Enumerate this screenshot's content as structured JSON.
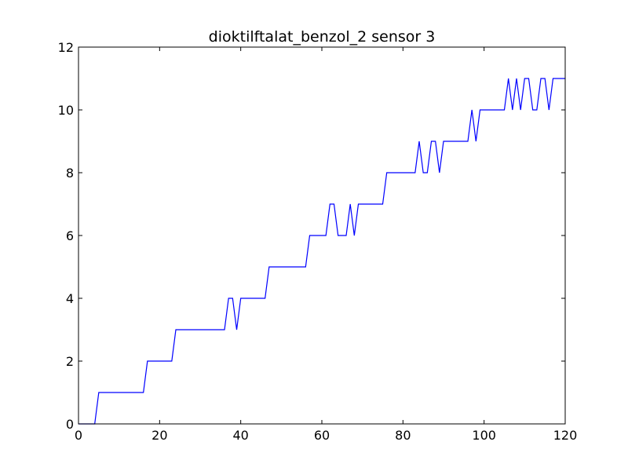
{
  "chart_data": {
    "type": "line",
    "title": "dioktilftalat_benzol_2 sensor 3",
    "xlabel": "",
    "ylabel": "",
    "xlim": [
      0,
      120
    ],
    "ylim": [
      0,
      12
    ],
    "xticks": [
      0,
      20,
      40,
      60,
      80,
      100,
      120
    ],
    "yticks": [
      0,
      2,
      4,
      6,
      8,
      10,
      12
    ],
    "grid": false,
    "series": [
      {
        "color": "#0000ff",
        "x": [
          0,
          1,
          2,
          3,
          4,
          5,
          6,
          7,
          8,
          9,
          10,
          11,
          12,
          13,
          14,
          15,
          16,
          17,
          18,
          19,
          20,
          21,
          22,
          23,
          24,
          25,
          26,
          27,
          28,
          29,
          30,
          31,
          32,
          33,
          34,
          35,
          36,
          37,
          38,
          39,
          40,
          41,
          42,
          43,
          44,
          45,
          46,
          47,
          48,
          49,
          50,
          51,
          52,
          53,
          54,
          55,
          56,
          57,
          58,
          59,
          60,
          61,
          62,
          63,
          64,
          65,
          66,
          67,
          68,
          69,
          70,
          71,
          72,
          73,
          74,
          75,
          76,
          77,
          78,
          79,
          80,
          81,
          82,
          83,
          84,
          85,
          86,
          87,
          88,
          89,
          90,
          91,
          92,
          93,
          94,
          95,
          96,
          97,
          98,
          99,
          100,
          101,
          102,
          103,
          104,
          105,
          106,
          107,
          108,
          109,
          110,
          111,
          112,
          113,
          114,
          115,
          116,
          117,
          118,
          119,
          120
        ],
        "y": [
          0,
          0,
          0,
          0,
          0,
          1,
          1,
          1,
          1,
          1,
          1,
          1,
          1,
          1,
          1,
          1,
          1,
          2,
          2,
          2,
          2,
          2,
          2,
          2,
          3,
          3,
          3,
          3,
          3,
          3,
          3,
          3,
          3,
          3,
          3,
          3,
          3,
          4,
          4,
          3,
          4,
          4,
          4,
          4,
          4,
          4,
          4,
          5,
          5,
          5,
          5,
          5,
          5,
          5,
          5,
          5,
          5,
          6,
          6,
          6,
          6,
          6,
          7,
          7,
          6,
          6,
          6,
          7,
          6,
          7,
          7,
          7,
          7,
          7,
          7,
          7,
          8,
          8,
          8,
          8,
          8,
          8,
          8,
          8,
          9,
          8,
          8,
          9,
          9,
          8,
          9,
          9,
          9,
          9,
          9,
          9,
          9,
          10,
          9,
          10,
          10,
          10,
          10,
          10,
          10,
          10,
          11,
          10,
          11,
          10,
          11,
          11,
          10,
          10,
          11,
          11,
          10,
          11,
          11,
          11,
          11
        ]
      }
    ]
  }
}
